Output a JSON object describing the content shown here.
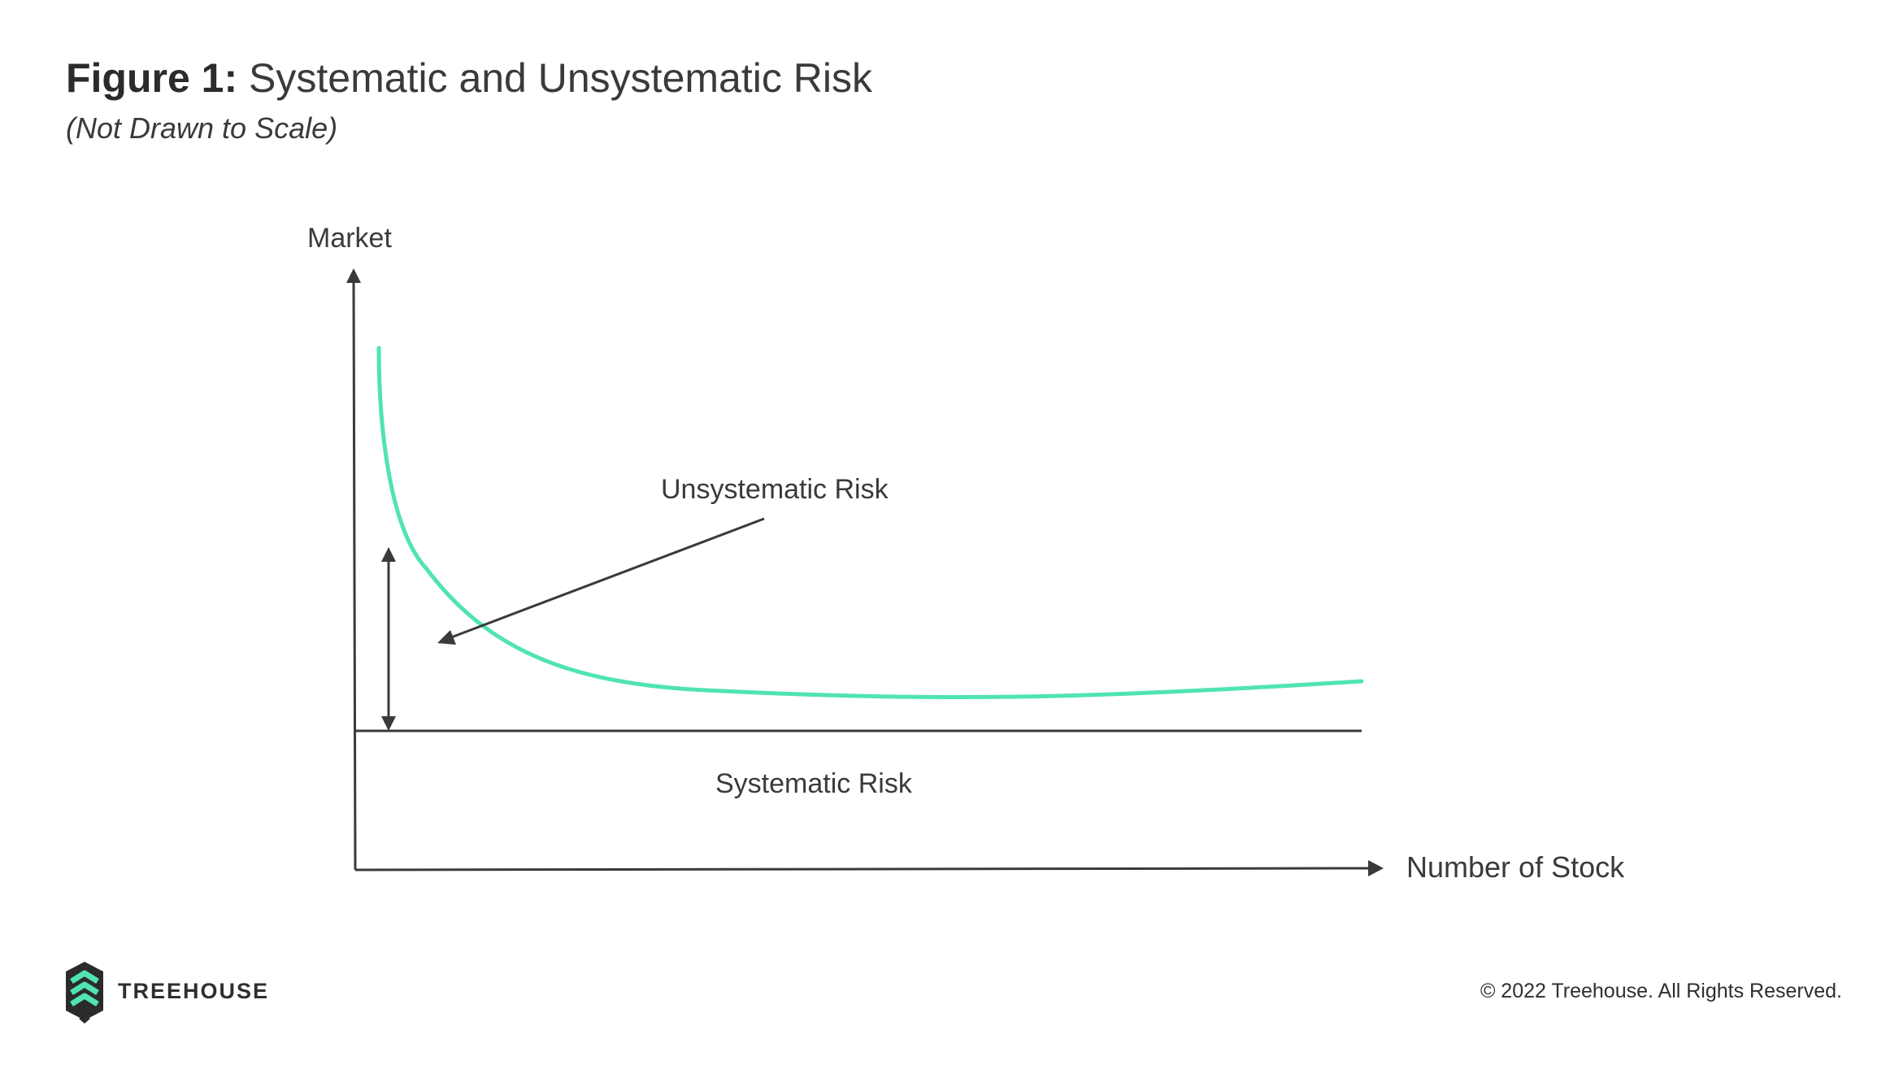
{
  "header": {
    "title_prefix": "Figure 1:",
    "title_main": "Systematic and Unsystematic Risk",
    "subtitle": "(Not Drawn to Scale)"
  },
  "diagram": {
    "y_axis_label": "Market",
    "x_axis_label": "Number of Stock",
    "unsystematic_label": "Unsystematic Risk",
    "systematic_label": "Systematic Risk",
    "curve_color": "#50e3b4",
    "line_color": "#3a3a3a"
  },
  "footer": {
    "brand_name": "TREEHOUSE",
    "copyright": "© 2022 Treehouse. All Rights Reserved.",
    "logo_icon": "treehouse-logo-icon",
    "logo_colors": [
      "#2b2b2b",
      "#50e3b4"
    ]
  }
}
